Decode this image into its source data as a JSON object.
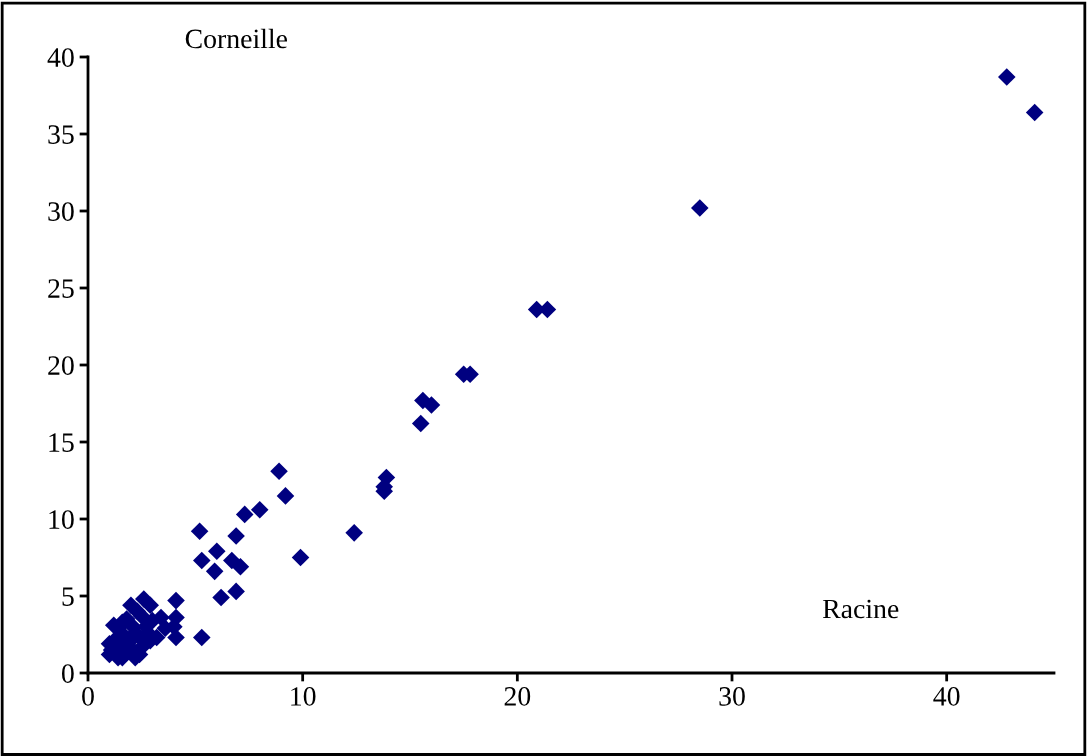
{
  "chart_data": {
    "type": "scatter",
    "xlabel": "Racine",
    "ylabel": "Corneille",
    "color": "#000080",
    "marker": "diamond",
    "grid": false,
    "xlim": [
      0,
      45
    ],
    "ylim": [
      0,
      40
    ],
    "xticks": [
      0,
      10,
      20,
      30,
      40
    ],
    "yticks": [
      0,
      5,
      10,
      15,
      20,
      25,
      30,
      35,
      40
    ],
    "x": [
      42.8,
      44.1,
      28.5,
      20.9,
      21.4,
      17.5,
      17.8,
      15.6,
      16.0,
      15.5,
      13.9,
      13.8,
      13.8,
      12.4,
      9.9,
      8.9,
      9.2,
      8.0,
      7.3,
      6.9,
      5.2,
      5.3,
      6.0,
      5.9,
      6.7,
      7.1,
      6.2,
      6.9,
      5.3,
      4.1,
      4.1,
      4.0,
      4.1,
      2.6,
      2.9,
      3.4,
      3.6,
      2.0,
      2.3,
      2.5,
      2.8,
      1.2,
      1.4,
      1.6,
      1.8,
      2.1,
      1.0,
      1.0,
      1.3,
      1.5,
      1.7,
      1.9,
      2.2,
      2.5,
      2.7,
      3.0,
      1.1,
      1.4,
      1.8,
      2.2,
      2.6,
      3.2,
      1.6,
      2.0,
      2.4,
      2.9
    ],
    "values": [
      38.7,
      36.4,
      30.2,
      23.6,
      23.6,
      19.4,
      19.4,
      17.7,
      17.4,
      16.2,
      12.7,
      12.1,
      11.8,
      9.1,
      7.5,
      13.1,
      11.5,
      10.6,
      10.3,
      8.9,
      9.2,
      7.3,
      7.9,
      6.6,
      7.3,
      6.9,
      4.9,
      5.3,
      2.3,
      4.7,
      2.3,
      3.0,
      3.6,
      4.8,
      4.4,
      3.6,
      2.9,
      4.4,
      4.0,
      3.7,
      2.6,
      3.1,
      2.9,
      3.3,
      3.5,
      3.0,
      1.9,
      1.2,
      2.2,
      1.8,
      2.4,
      2.0,
      2.6,
      2.2,
      3.0,
      3.4,
      1.5,
      1.0,
      1.3,
      1.0,
      1.8,
      2.3,
      1.0,
      1.6,
      1.2,
      2.1
    ]
  }
}
